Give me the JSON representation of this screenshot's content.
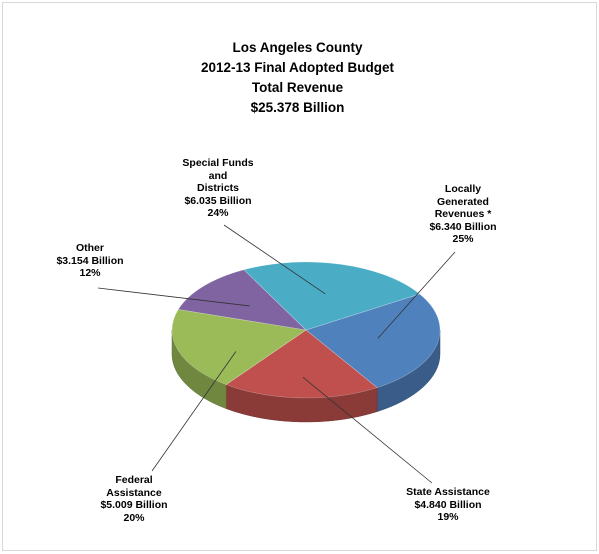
{
  "title": {
    "line1": "Los Angeles County",
    "line2": "2012-13 Final Adopted Budget",
    "line3": "Total Revenue",
    "line4": "$25.378 Billion"
  },
  "chart_data": {
    "type": "pie",
    "title": "Los Angeles County 2012-13 Final Adopted Budget Total Revenue $25.378 Billion",
    "units": "Billion",
    "slices": [
      {
        "name": "Locally Generated Revenues *",
        "value": 6.34,
        "percent": 25,
        "color": "#4f81bd",
        "label": [
          "Locally",
          "Generated",
          "Revenues *",
          "$6.340 Billion",
          "25%"
        ]
      },
      {
        "name": "State Assistance",
        "value": 4.84,
        "percent": 19,
        "color": "#c0504d",
        "label": [
          "State Assistance",
          "$4.840 Billion",
          "19%"
        ]
      },
      {
        "name": "Federal Assistance",
        "value": 5.009,
        "percent": 20,
        "color": "#9bbb59",
        "label": [
          "Federal",
          "Assistance",
          "$5.009 Billion",
          "20%"
        ]
      },
      {
        "name": "Other",
        "value": 3.154,
        "percent": 12,
        "color": "#8064a2",
        "label": [
          "Other",
          "$3.154 Billion",
          "12%"
        ]
      },
      {
        "name": "Special Funds and Districts",
        "value": 6.035,
        "percent": 24,
        "color": "#4bacc6",
        "label": [
          "Special Funds",
          "and",
          "Districts",
          "$6.035 Billion",
          "24%"
        ]
      }
    ]
  }
}
